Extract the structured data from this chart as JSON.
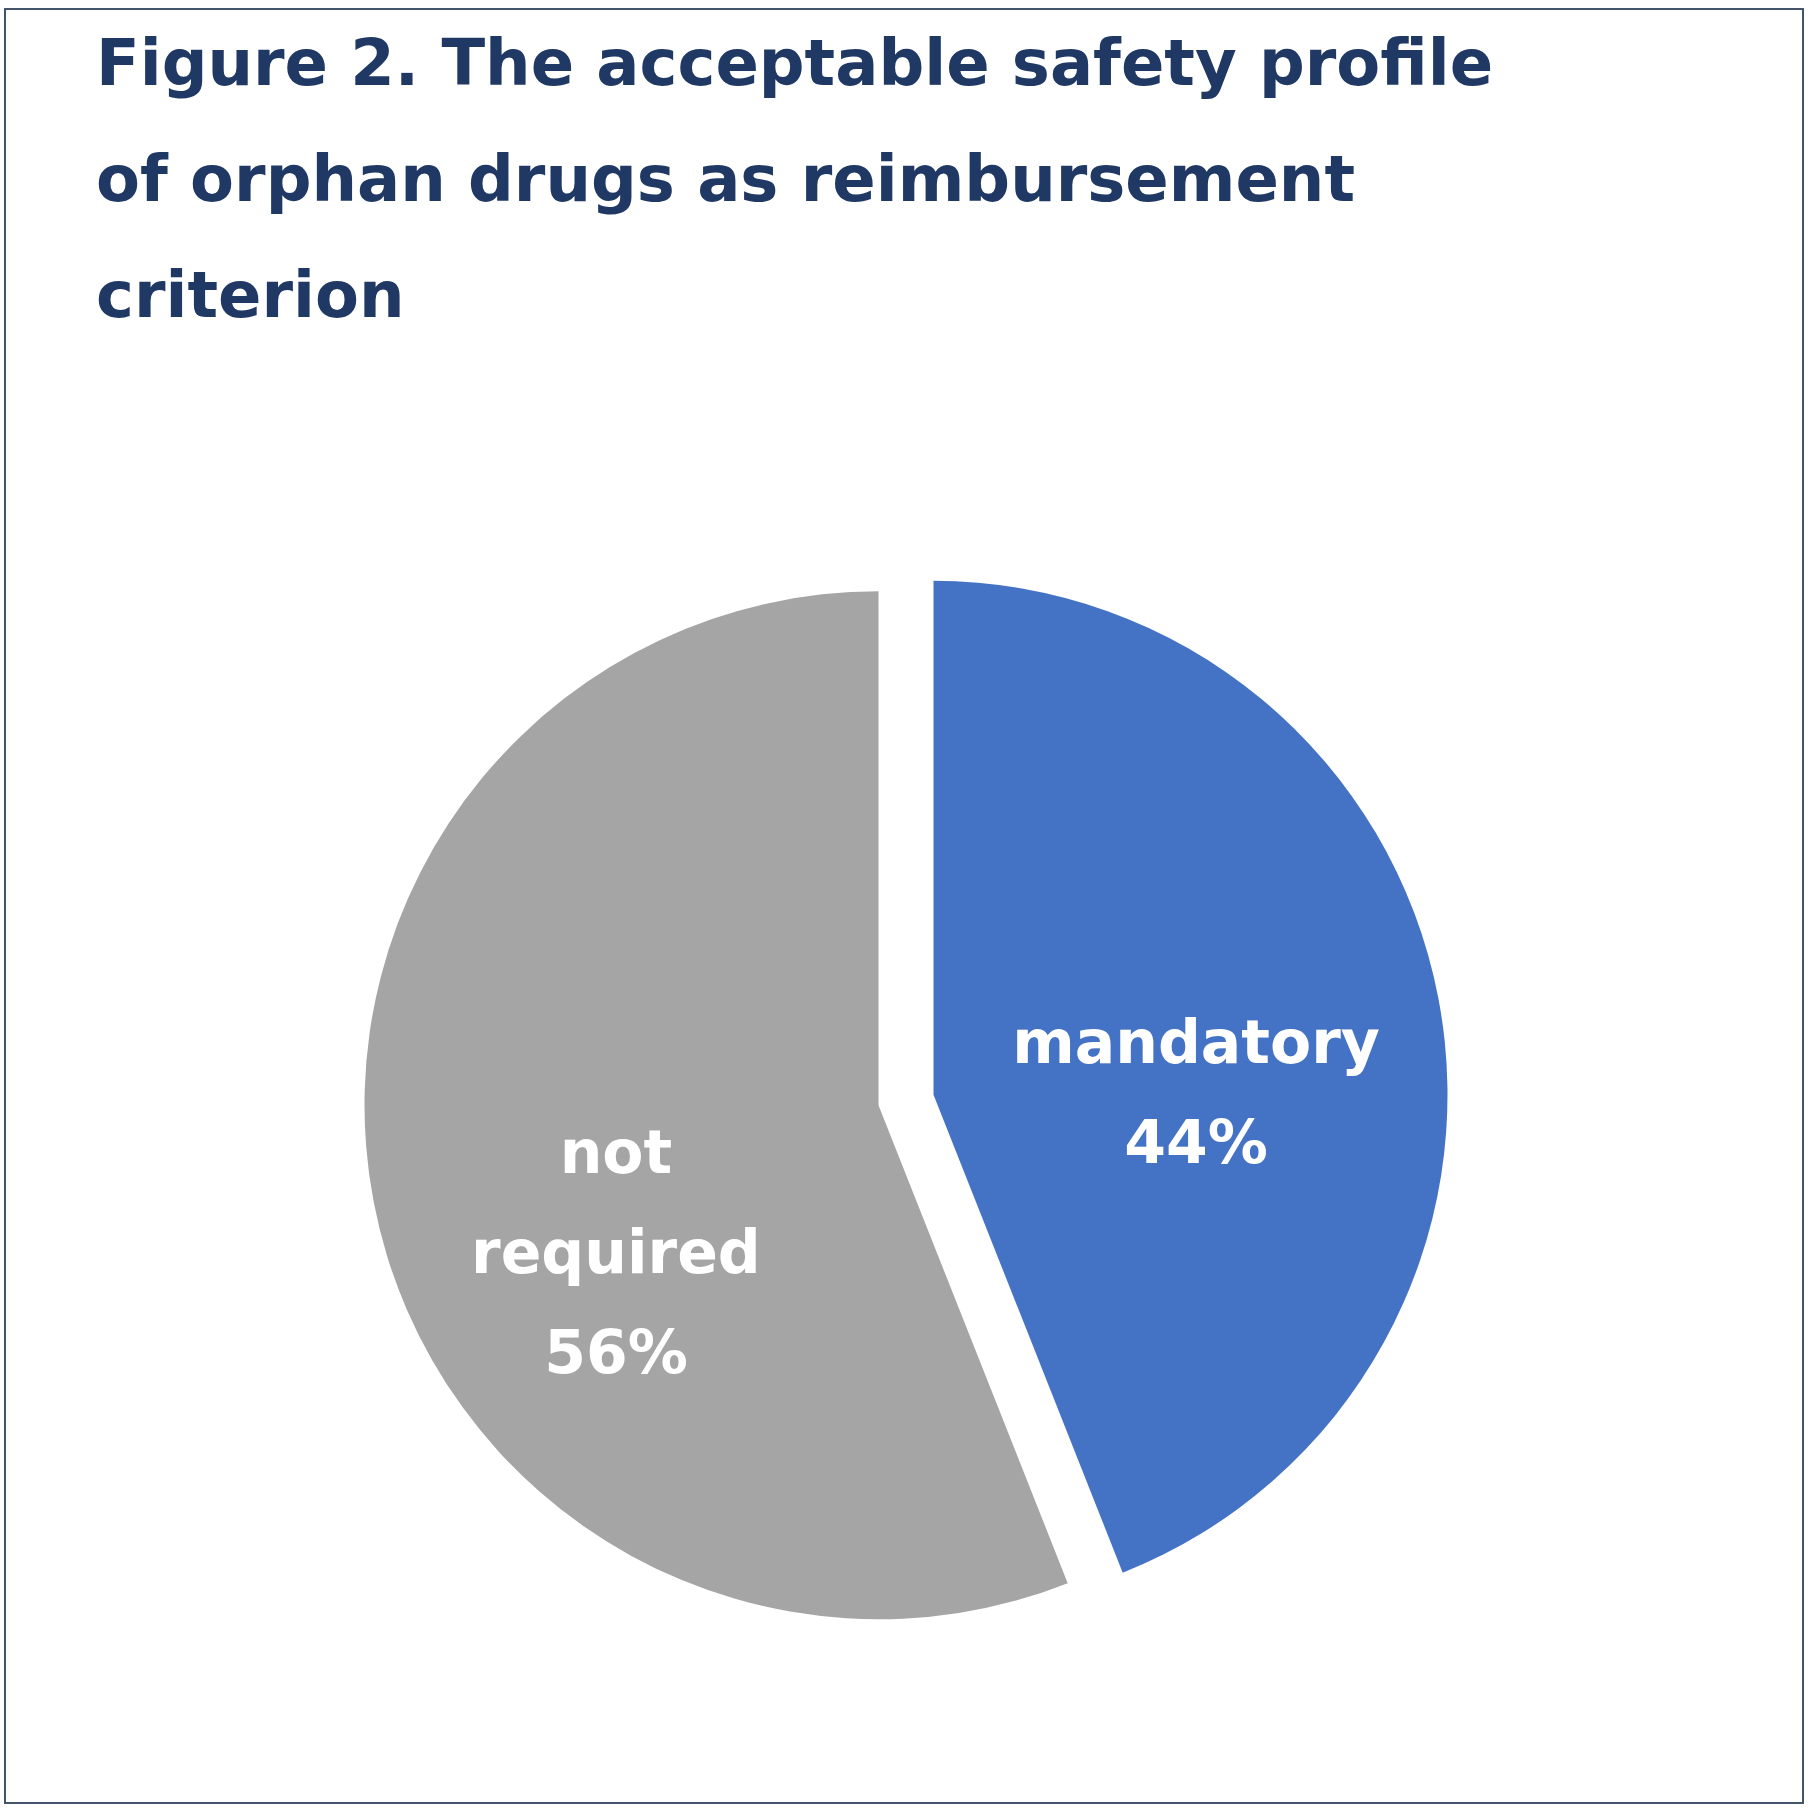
{
  "chart_data": {
    "type": "pie",
    "title": "Figure 2. The acceptable safety profile of orphan drugs as reimbursement criterion",
    "categories": [
      "mandatory",
      "not required"
    ],
    "values": [
      44,
      56
    ],
    "colors": [
      "#4472c4",
      "#a5a5a5"
    ],
    "value_labels": [
      "44%",
      "56%"
    ]
  }
}
